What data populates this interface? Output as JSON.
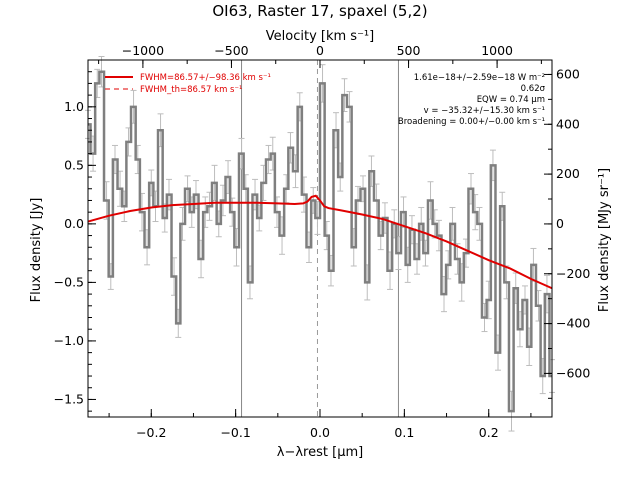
{
  "chart_data": {
    "type": "line",
    "title": "OI63, Raster 17, spaxel (5,2)",
    "xlabel": "λ−λrest [μm]",
    "ylabel": "Flux density [Jy]",
    "top_xlabel": "Velocity [km s⁻¹]",
    "right_ylabel": "Flux density [MJy sr⁻¹]",
    "xlim": [
      -0.275,
      0.275
    ],
    "ylim": [
      -1.65,
      1.4
    ],
    "top_xlim": [
      -1310,
      1310
    ],
    "right_ylim": [
      -775,
      658
    ],
    "x_ticks": [
      -0.2,
      -0.1,
      0.0,
      0.1,
      0.2
    ],
    "x_tick_labels": [
      "−0.2",
      "−0.1",
      "0.0",
      "0.1",
      "0.2"
    ],
    "y_ticks": [
      -1.5,
      -1.0,
      -0.5,
      0.0,
      0.5,
      1.0
    ],
    "y_tick_labels": [
      "−1.5",
      "−1.0",
      "−0.5",
      "0.0",
      "0.5",
      "1.0"
    ],
    "top_ticks": [
      -1000,
      -500,
      0,
      500,
      1000
    ],
    "top_tick_labels": [
      "−1000",
      "−500",
      "0",
      "500",
      "1000"
    ],
    "right_ticks": [
      -600,
      -400,
      -200,
      0,
      200,
      400,
      600
    ],
    "right_tick_labels": [
      "−600",
      "−400",
      "−200",
      "0",
      "200",
      "400",
      "600"
    ],
    "vertical_lines": [
      -0.093,
      0.093
    ],
    "center_line": -0.003,
    "legend": [
      "FWHM=86.57+/−98.36 km s⁻¹",
      "FWHM_th=86.57 km s⁻¹"
    ],
    "annotations": [
      "1.61e−18+/−2.59e−18 W m⁻²",
      "0.62σ",
      "EQW = 0.74 μm",
      "v = −35.32+/−15.30 km s⁻¹",
      "Broadening = 0.00+/−0.00 km s⁻¹"
    ],
    "series": [
      {
        "x": [
          -0.275,
          -0.269,
          -0.264,
          -0.259,
          -0.253,
          -0.248,
          -0.243,
          -0.237,
          -0.232,
          -0.227,
          -0.221,
          -0.216,
          -0.211,
          -0.205,
          -0.2,
          -0.195,
          -0.189,
          -0.184,
          -0.179,
          -0.173,
          -0.168,
          -0.163,
          -0.157,
          -0.152,
          -0.147,
          -0.141,
          -0.136,
          -0.131,
          -0.125,
          -0.12,
          -0.115,
          -0.109,
          -0.104,
          -0.099,
          -0.093,
          -0.088,
          -0.083,
          -0.077,
          -0.072,
          -0.067,
          -0.061,
          -0.056,
          -0.051,
          -0.045,
          -0.04,
          -0.035,
          -0.029,
          -0.024,
          -0.019,
          -0.013,
          -0.008,
          -0.003,
          0.003,
          0.008,
          0.013,
          0.019,
          0.024,
          0.029,
          0.035,
          0.04,
          0.045,
          0.051,
          0.056,
          0.061,
          0.067,
          0.072,
          0.077,
          0.083,
          0.088,
          0.093,
          0.099,
          0.104,
          0.109,
          0.115,
          0.12,
          0.125,
          0.131,
          0.136,
          0.141,
          0.147,
          0.152,
          0.157,
          0.163,
          0.168,
          0.173,
          0.179,
          0.184,
          0.189,
          0.195,
          0.2,
          0.205,
          0.211,
          0.216,
          0.221,
          0.227,
          0.232,
          0.237,
          0.243,
          0.248,
          0.253,
          0.259,
          0.264,
          0.269,
          0.275
        ],
        "y": [
          0.85,
          0.6,
          1.2,
          1.3,
          0.2,
          -0.45,
          0.55,
          0.3,
          0.15,
          0.7,
          1.0,
          0.55,
          0.1,
          -0.2,
          0.35,
          0.15,
          0.8,
          0.05,
          0.25,
          -0.45,
          -0.85,
          0.0,
          0.3,
          0.1,
          0.25,
          -0.3,
          0.1,
          0.15,
          0.35,
          0.0,
          0.2,
          0.4,
          0.1,
          -0.2,
          0.6,
          0.3,
          -0.5,
          0.25,
          0.05,
          0.35,
          0.55,
          0.6,
          0.1,
          -0.1,
          0.3,
          0.65,
          0.45,
          1.0,
          0.25,
          -0.2,
          0.2,
          0.05,
          1.2,
          -0.1,
          -0.4,
          0.8,
          0.4,
          1.1,
          1.0,
          -0.2,
          0.2,
          0.3,
          -0.5,
          0.45,
          0.2,
          -0.1,
          0.05,
          -0.4,
          0.0,
          -0.25,
          0.1,
          -0.35,
          -0.05,
          -0.3,
          0.0,
          -0.25,
          0.2,
          0.0,
          -0.1,
          -0.6,
          -0.35,
          0.0,
          -0.3,
          -0.5,
          -0.25,
          0.3,
          0.1,
          0.0,
          -0.8,
          -0.65,
          0.5,
          -1.1,
          0.15,
          -0.5,
          -1.6,
          -0.55,
          -0.9,
          -0.65,
          -1.05,
          -0.35,
          -0.7,
          -1.3,
          -0.6,
          -1.3
        ],
        "err": [
          0.12,
          0.15,
          0.12,
          0.13,
          0.16,
          0.11,
          0.12,
          0.15,
          0.13,
          0.12,
          0.14,
          0.12,
          0.16,
          0.15,
          0.11,
          0.13,
          0.14,
          0.12,
          0.13,
          0.16,
          0.12,
          0.14,
          0.11,
          0.13,
          0.12,
          0.16,
          0.13,
          0.12,
          0.15,
          0.11,
          0.13,
          0.14,
          0.12,
          0.16,
          0.13,
          0.12,
          0.14,
          0.13,
          0.11,
          0.15,
          0.12,
          0.14,
          0.13,
          0.16,
          0.12,
          0.13,
          0.14,
          0.12,
          0.15,
          0.13,
          0.11,
          0.14,
          0.16,
          0.12,
          0.13,
          0.15,
          0.12,
          0.14,
          0.13,
          0.16,
          0.12,
          0.11,
          0.15,
          0.13,
          0.14,
          0.12,
          0.13,
          0.16,
          0.12,
          0.14,
          0.13,
          0.15,
          0.12,
          0.13,
          0.14,
          0.11,
          0.16,
          0.12,
          0.13,
          0.15,
          0.12,
          0.14,
          0.13,
          0.16,
          0.12,
          0.13,
          0.15,
          0.14,
          0.12,
          0.16,
          0.13,
          0.15,
          0.12,
          0.14,
          0.17,
          0.13,
          0.15,
          0.12,
          0.16,
          0.14,
          0.13,
          0.15,
          0.16,
          0.14
        ],
        "color": "#7f7f7f"
      },
      {
        "x": [
          -0.275,
          -0.25,
          -0.225,
          -0.2,
          -0.175,
          -0.15,
          -0.125,
          -0.1,
          -0.075,
          -0.05,
          -0.03,
          -0.02,
          -0.015,
          -0.01,
          -0.005,
          0.0,
          0.005,
          0.01,
          0.025,
          0.05,
          0.075,
          0.1,
          0.125,
          0.15,
          0.175,
          0.2,
          0.225,
          0.25,
          0.275
        ],
        "y": [
          0.02,
          0.07,
          0.11,
          0.14,
          0.16,
          0.17,
          0.18,
          0.18,
          0.18,
          0.175,
          0.17,
          0.175,
          0.19,
          0.23,
          0.24,
          0.2,
          0.15,
          0.135,
          0.115,
          0.08,
          0.04,
          -0.02,
          -0.08,
          -0.15,
          -0.23,
          -0.31,
          -0.38,
          -0.47,
          -0.55
        ],
        "color": "#e00000"
      }
    ]
  }
}
